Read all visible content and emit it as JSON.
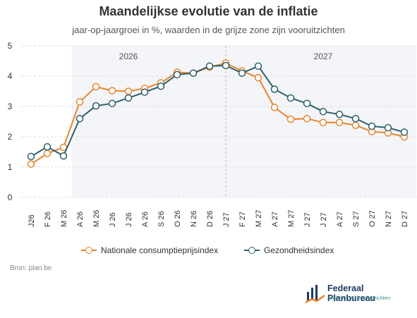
{
  "title": "Maandelijkse evolutie van de inflatie",
  "subtitle": "jaar-op-jaargroei in %, waarden in de grijze zone zijn vooruitzichten",
  "source": "Bron: plan.be",
  "logo": {
    "name": "Federaal Planbureau",
    "tagline": "Analyses en vooruitzichten"
  },
  "colors": {
    "nationale": "#e8852a",
    "gezondheid": "#2b5e6e",
    "forecast_zone": "#f4f5f8",
    "grid": "#dddddd"
  },
  "chart_data": {
    "type": "line",
    "title": "Maandelijkse evolutie van de inflatie",
    "subtitle": "jaar-op-jaargroei in %, waarden in de grijze zone zijn vooruitzichten",
    "categories": [
      "J26",
      "F 26",
      "M 26",
      "A 26",
      "M 26",
      "J 26",
      "J 26",
      "A 26",
      "S 26",
      "O 26",
      "N 26",
      "D 26",
      "J 27",
      "F 27",
      "M 27",
      "A 27",
      "M 27",
      "J 27",
      "J 27",
      "A 27",
      "S 27",
      "O 27",
      "N 27",
      "D 27"
    ],
    "year_labels": [
      {
        "label": "2026",
        "start_index": 0
      },
      {
        "label": "2027",
        "start_index": 12
      }
    ],
    "forecast_start_index": 3,
    "series": [
      {
        "name": "Nationale consumptieprijsindex",
        "color": "#e8852a",
        "values": [
          1.1,
          1.45,
          1.65,
          3.15,
          3.65,
          3.52,
          3.5,
          3.6,
          3.78,
          4.13,
          4.1,
          4.3,
          4.43,
          4.17,
          3.95,
          2.97,
          2.58,
          2.6,
          2.47,
          2.47,
          2.38,
          2.17,
          2.13,
          2.0
        ]
      },
      {
        "name": "Gezondheidsindex",
        "color": "#2b5e6e",
        "values": [
          1.35,
          1.67,
          1.37,
          2.6,
          3.02,
          3.1,
          3.28,
          3.47,
          3.67,
          4.05,
          4.1,
          4.33,
          4.35,
          4.1,
          4.33,
          3.57,
          3.28,
          3.1,
          2.83,
          2.74,
          2.6,
          2.35,
          2.3,
          2.15
        ]
      }
    ],
    "ylim": [
      0,
      5
    ],
    "yticks": [
      0,
      1,
      2,
      3,
      4,
      5
    ],
    "grid": true,
    "legend": "bottom"
  }
}
